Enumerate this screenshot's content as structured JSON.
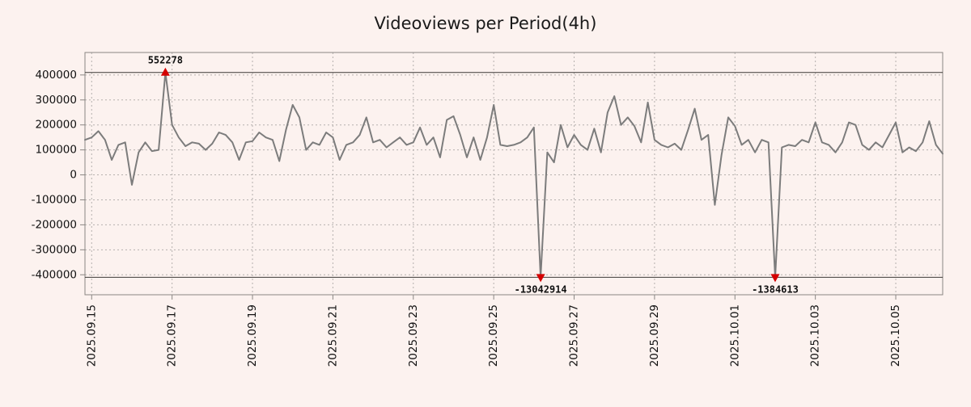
{
  "page": {
    "background": "#fcf2ef"
  },
  "chart_data": {
    "type": "line",
    "title": "Videoviews per Period(4h)",
    "xlabel": "",
    "ylabel": "",
    "x_interval": "4h",
    "grid": true,
    "legend": false,
    "ylim": [
      -480000,
      490000
    ],
    "yticks": [
      -400000,
      -300000,
      -200000,
      -100000,
      0,
      100000,
      200000,
      300000,
      400000
    ],
    "clip_limit": 410000,
    "xtick_labels": [
      "2025.09.15",
      "2025.09.17",
      "2025.09.19",
      "2025.09.21",
      "2025.09.23",
      "2025.09.25",
      "2025.09.27",
      "2025.09.29",
      "2025.10.01",
      "2025.10.03",
      "2025.10.05"
    ],
    "xtick_indices": [
      1,
      13,
      25,
      37,
      49,
      61,
      73,
      85,
      97,
      109,
      121
    ],
    "series": [
      {
        "name": "videoviews",
        "values": [
          140000,
          150000,
          175000,
          140000,
          60000,
          120000,
          130000,
          -40000,
          90000,
          130000,
          95000,
          100000,
          552278,
          200000,
          150000,
          115000,
          130000,
          125000,
          100000,
          125000,
          170000,
          160000,
          130000,
          60000,
          130000,
          135000,
          170000,
          150000,
          140000,
          55000,
          180000,
          280000,
          230000,
          100000,
          130000,
          120000,
          170000,
          150000,
          60000,
          120000,
          130000,
          160000,
          230000,
          130000,
          140000,
          110000,
          130000,
          150000,
          120000,
          130000,
          190000,
          120000,
          150000,
          70000,
          220000,
          235000,
          160000,
          70000,
          150000,
          60000,
          150000,
          280000,
          120000,
          115000,
          120000,
          130000,
          150000,
          190000,
          -13042914,
          90000,
          50000,
          200000,
          110000,
          160000,
          120000,
          100000,
          185000,
          90000,
          250000,
          315000,
          200000,
          230000,
          195000,
          130000,
          290000,
          140000,
          120000,
          110000,
          125000,
          100000,
          180000,
          265000,
          140000,
          160000,
          -120000,
          80000,
          230000,
          195000,
          120000,
          140000,
          90000,
          140000,
          130000,
          -1384613,
          110000,
          120000,
          115000,
          140000,
          130000,
          210000,
          130000,
          120000,
          90000,
          130000,
          210000,
          200000,
          120000,
          100000,
          130000,
          110000,
          160000,
          210000,
          90000,
          110000,
          95000,
          130000,
          215000,
          120000,
          85000
        ]
      }
    ],
    "annotations": [
      {
        "kind": "peak",
        "label": "552278",
        "index": 12,
        "value": 552278
      },
      {
        "kind": "trough",
        "label": "-13042914",
        "index": 68,
        "value": -13042914
      },
      {
        "kind": "trough",
        "label": "-1384613",
        "index": 103,
        "value": -1384613
      }
    ],
    "colors": {
      "background": "#fcf2ef",
      "line": "#7c7c7c",
      "marker": "#d40000",
      "grid": "#b5b0ae",
      "frame": "#8a8683",
      "clip_line": "#3c3836",
      "text": "#111111"
    }
  }
}
